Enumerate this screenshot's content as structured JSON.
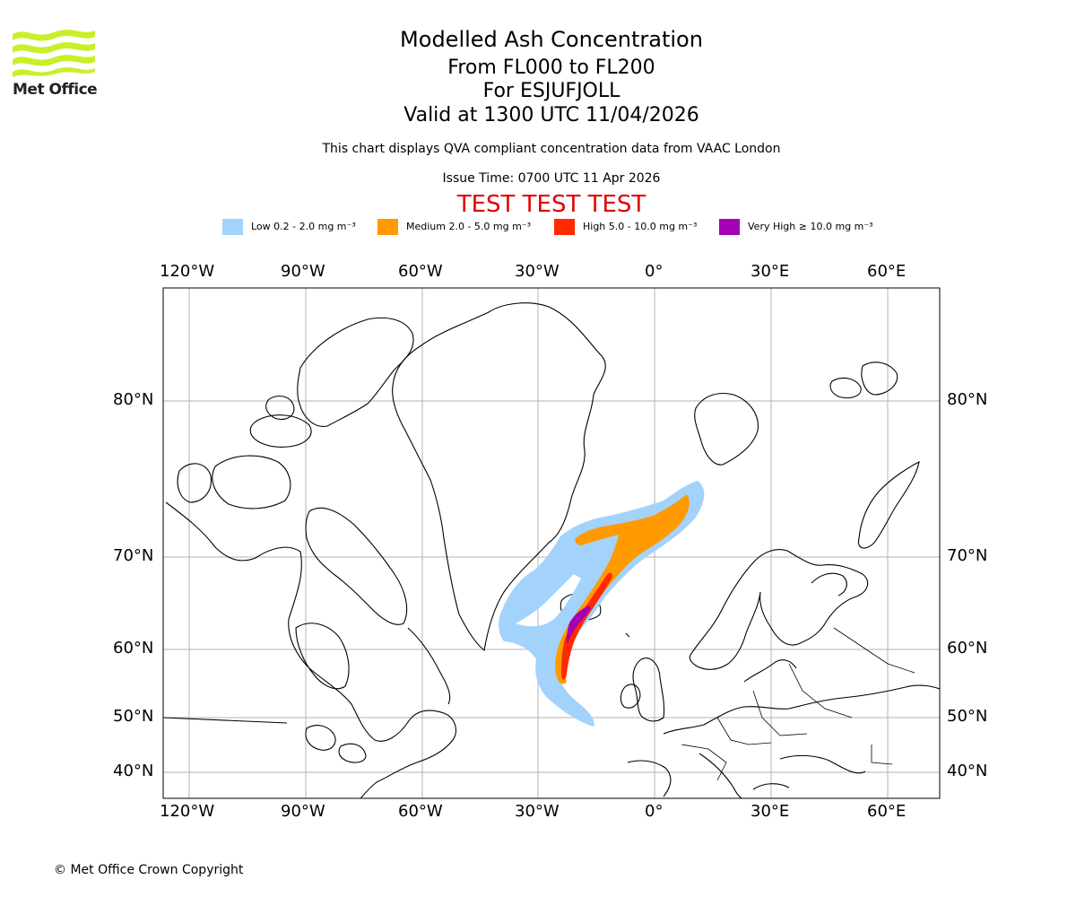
{
  "branding": {
    "name": "Met Office",
    "accent_color": "#c8f028"
  },
  "title": {
    "main": "Modelled Ash Concentration",
    "levels": "From FL000 to FL200",
    "volcano": "For ESJUFJOLL",
    "valid": "Valid at 1300 UTC 11/04/2026"
  },
  "note": "This chart displays QVA compliant concentration data from VAAC London",
  "issue_time": "Issue Time: 0700 UTC 11 Apr 2026",
  "test_banner": "TEST TEST TEST",
  "legend": [
    {
      "label": "Low 0.2 - 2.0 mg m⁻³",
      "color": "#a3d3fb"
    },
    {
      "label": "Medium 2.0 - 5.0 mg m⁻³",
      "color": "#ff9a00"
    },
    {
      "label": "High 5.0 - 10.0 mg m⁻³",
      "color": "#ff2a00"
    },
    {
      "label": "Very High ≥ 10.0 mg m⁻³",
      "color": "#a500b5"
    }
  ],
  "axes": {
    "longitude_labels": [
      "120°W",
      "90°W",
      "60°W",
      "30°W",
      "0°",
      "30°E",
      "60°E"
    ],
    "latitude_labels": [
      "80°N",
      "70°N",
      "60°N",
      "50°N",
      "40°N"
    ]
  },
  "copyright": "© Met Office Crown Copyright"
}
